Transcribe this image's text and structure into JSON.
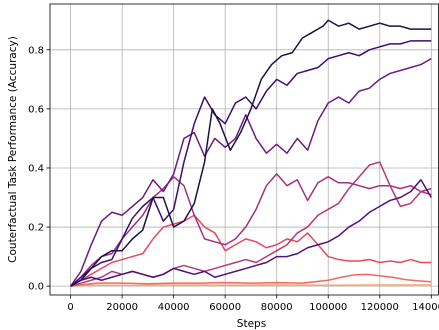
{
  "chart_data": {
    "type": "line",
    "title": "",
    "xlabel": "Steps",
    "ylabel": "Couterfactual Task Performance (Accuracy)",
    "xlim": [
      -8000,
      143000
    ],
    "ylim": [
      -0.03,
      0.955
    ],
    "grid": true,
    "legend": "none",
    "xticks": [
      0,
      20000,
      40000,
      60000,
      80000,
      100000,
      120000,
      140000
    ],
    "xtick_labels": [
      "0",
      "20000",
      "40000",
      "60000",
      "80000",
      "100000",
      "120000",
      "140000"
    ],
    "yticks": [
      0.0,
      0.2,
      0.4,
      0.6,
      0.8
    ],
    "ytick_labels": [
      "0.0",
      "0.2",
      "0.4",
      "0.6",
      "0.8"
    ],
    "series": [
      {
        "color": "#fca36c",
        "x": [
          0,
          5000,
          20000,
          40000,
          60000,
          80000,
          100000,
          120000,
          140000
        ],
        "y": [
          0.0,
          0.003,
          0.002,
          0.004,
          0.003,
          0.004,
          0.003,
          0.004,
          0.004
        ]
      },
      {
        "color": "#f4685c",
        "x": [
          0,
          5000,
          10000,
          20000,
          30000,
          40000,
          50000,
          60000,
          70000,
          80000,
          90000,
          100000,
          105000,
          110000,
          115000,
          120000,
          125000,
          130000,
          135000,
          140000
        ],
        "y": [
          0.0,
          0.005,
          0.01,
          0.01,
          0.008,
          0.01,
          0.01,
          0.012,
          0.01,
          0.012,
          0.01,
          0.02,
          0.03,
          0.038,
          0.04,
          0.035,
          0.03,
          0.022,
          0.018,
          0.015
        ]
      },
      {
        "color": "#e8475d",
        "x": [
          0,
          4000,
          8000,
          12000,
          16000,
          20000,
          24000,
          28000,
          32000,
          36000,
          40000,
          44000,
          48000,
          52000,
          56000,
          60000,
          64000,
          68000,
          72000,
          76000,
          80000,
          84000,
          88000,
          92000,
          96000,
          100000,
          104000,
          108000,
          112000,
          116000,
          120000,
          124000,
          128000,
          132000,
          136000,
          140000
        ],
        "y": [
          0.0,
          0.02,
          0.04,
          0.06,
          0.08,
          0.09,
          0.1,
          0.11,
          0.16,
          0.2,
          0.21,
          0.22,
          0.24,
          0.2,
          0.18,
          0.12,
          0.14,
          0.16,
          0.15,
          0.13,
          0.14,
          0.16,
          0.15,
          0.18,
          0.14,
          0.1,
          0.09,
          0.085,
          0.085,
          0.09,
          0.08,
          0.085,
          0.08,
          0.09,
          0.08,
          0.08
        ]
      },
      {
        "color": "#a1307e",
        "x": [
          0,
          4000,
          8000,
          12000,
          16000,
          20000,
          24000,
          28000,
          32000,
          36000,
          40000,
          44000,
          48000,
          52000,
          56000,
          60000,
          64000,
          68000,
          72000,
          76000,
          80000,
          84000,
          88000,
          92000,
          96000,
          100000,
          104000,
          108000,
          112000,
          116000,
          120000,
          124000,
          128000,
          132000,
          136000,
          140000
        ],
        "y": [
          0.0,
          0.03,
          0.07,
          0.1,
          0.11,
          0.16,
          0.2,
          0.24,
          0.3,
          0.33,
          0.37,
          0.34,
          0.24,
          0.16,
          0.15,
          0.14,
          0.16,
          0.2,
          0.26,
          0.34,
          0.38,
          0.34,
          0.36,
          0.29,
          0.35,
          0.37,
          0.35,
          0.35,
          0.34,
          0.33,
          0.34,
          0.34,
          0.33,
          0.34,
          0.32,
          0.33
        ]
      },
      {
        "color": "#b73779",
        "x": [
          0,
          4000,
          8000,
          12000,
          16000,
          20000,
          24000,
          28000,
          32000,
          36000,
          40000,
          44000,
          48000,
          52000,
          56000,
          60000,
          64000,
          68000,
          72000,
          76000,
          80000,
          84000,
          88000,
          92000,
          96000,
          100000,
          104000,
          108000,
          112000,
          116000,
          120000,
          124000,
          128000,
          132000,
          136000,
          140000
        ],
        "y": [
          0.0,
          0.01,
          0.02,
          0.03,
          0.05,
          0.04,
          0.05,
          0.04,
          0.03,
          0.04,
          0.06,
          0.07,
          0.06,
          0.05,
          0.06,
          0.07,
          0.08,
          0.09,
          0.08,
          0.1,
          0.12,
          0.14,
          0.18,
          0.2,
          0.24,
          0.26,
          0.28,
          0.33,
          0.37,
          0.41,
          0.42,
          0.34,
          0.27,
          0.28,
          0.32,
          0.31
        ]
      },
      {
        "color": "#4f127b",
        "x": [
          0,
          4000,
          8000,
          12000,
          16000,
          20000,
          24000,
          28000,
          32000,
          36000,
          40000,
          44000,
          48000,
          52000,
          56000,
          60000,
          64000,
          68000,
          72000,
          76000,
          80000,
          84000,
          88000,
          92000,
          96000,
          100000,
          104000,
          108000,
          112000,
          116000,
          120000,
          124000,
          128000,
          132000,
          136000,
          140000
        ],
        "y": [
          0.0,
          0.02,
          0.03,
          0.02,
          0.03,
          0.04,
          0.05,
          0.04,
          0.03,
          0.04,
          0.06,
          0.05,
          0.04,
          0.05,
          0.03,
          0.04,
          0.05,
          0.06,
          0.07,
          0.08,
          0.1,
          0.1,
          0.11,
          0.13,
          0.14,
          0.15,
          0.17,
          0.2,
          0.22,
          0.25,
          0.27,
          0.29,
          0.3,
          0.32,
          0.36,
          0.3
        ]
      },
      {
        "color": "#6b1d81",
        "x": [
          0,
          4000,
          8000,
          12000,
          16000,
          20000,
          24000,
          28000,
          32000,
          36000,
          40000,
          44000,
          48000,
          52000,
          56000,
          60000,
          64000,
          68000,
          72000,
          76000,
          80000,
          84000,
          88000,
          92000,
          96000,
          100000,
          104000,
          108000,
          112000,
          116000,
          120000,
          124000,
          128000,
          132000,
          136000,
          140000
        ],
        "y": [
          0.0,
          0.05,
          0.14,
          0.22,
          0.25,
          0.24,
          0.27,
          0.3,
          0.36,
          0.32,
          0.38,
          0.5,
          0.52,
          0.44,
          0.5,
          0.47,
          0.5,
          0.58,
          0.5,
          0.45,
          0.48,
          0.45,
          0.5,
          0.46,
          0.56,
          0.62,
          0.64,
          0.62,
          0.66,
          0.67,
          0.7,
          0.72,
          0.73,
          0.74,
          0.75,
          0.77
        ]
      },
      {
        "color": "#3b0f70",
        "x": [
          0,
          4000,
          8000,
          12000,
          16000,
          20000,
          24000,
          28000,
          32000,
          36000,
          40000,
          44000,
          48000,
          52000,
          56000,
          60000,
          64000,
          68000,
          72000,
          76000,
          80000,
          84000,
          88000,
          92000,
          96000,
          100000,
          104000,
          108000,
          112000,
          116000,
          120000,
          124000,
          128000,
          132000,
          136000,
          140000
        ],
        "y": [
          0.0,
          0.03,
          0.06,
          0.08,
          0.09,
          0.16,
          0.23,
          0.27,
          0.3,
          0.22,
          0.26,
          0.42,
          0.55,
          0.64,
          0.58,
          0.55,
          0.62,
          0.64,
          0.6,
          0.66,
          0.7,
          0.68,
          0.72,
          0.73,
          0.74,
          0.77,
          0.78,
          0.79,
          0.78,
          0.8,
          0.81,
          0.82,
          0.82,
          0.83,
          0.83,
          0.83
        ]
      },
      {
        "color": "#1d1147",
        "x": [
          0,
          4000,
          8000,
          12000,
          16000,
          20000,
          24000,
          28000,
          32000,
          36000,
          40000,
          44000,
          48000,
          52000,
          55000,
          58000,
          62000,
          66000,
          70000,
          74000,
          78000,
          82000,
          86000,
          90000,
          94000,
          98000,
          100000,
          104000,
          108000,
          112000,
          116000,
          120000,
          124000,
          128000,
          132000,
          136000,
          140000
        ],
        "y": [
          0.0,
          0.02,
          0.06,
          0.1,
          0.12,
          0.12,
          0.16,
          0.19,
          0.3,
          0.3,
          0.2,
          0.22,
          0.28,
          0.42,
          0.6,
          0.55,
          0.46,
          0.52,
          0.6,
          0.7,
          0.75,
          0.78,
          0.79,
          0.84,
          0.86,
          0.88,
          0.9,
          0.88,
          0.89,
          0.87,
          0.88,
          0.89,
          0.88,
          0.88,
          0.87,
          0.87,
          0.87
        ]
      }
    ]
  }
}
